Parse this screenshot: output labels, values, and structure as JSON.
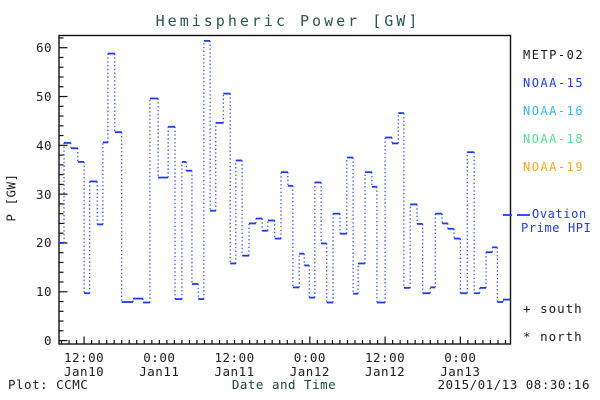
{
  "title": "Hemispheric Power [GW]",
  "axes": {
    "y_label": "P [GW]",
    "x_label": "Date and Time"
  },
  "footer": {
    "left": "Plot: CCMC",
    "right": "2015/01/13 08:30:16"
  },
  "legend": {
    "items": [
      {
        "label": "METP-02",
        "color": "#1a1a1a"
      },
      {
        "label": "NOAA-15",
        "color": "#1e3be6"
      },
      {
        "label": "NOAA-16",
        "color": "#37b6fb"
      },
      {
        "label": "NOAA-18",
        "color": "#57de8b"
      },
      {
        "label": "NOAA-19",
        "color": "#ffa51d"
      }
    ]
  },
  "annotations": {
    "ovation": {
      "line1": "Ovation",
      "line2": "Prime HPI",
      "color": "#1e3be6"
    },
    "markers": [
      {
        "symbol": "+",
        "label": "south"
      },
      {
        "symbol": "*",
        "label": "north"
      }
    ]
  },
  "chart_data": {
    "type": "line",
    "subtype": "step-segments-with-dotted-connectors",
    "title": "Hemispheric Power [GW]",
    "xlabel": "Date and Time",
    "ylabel": "P [GW]",
    "x_start": "2015-01-10 08:00",
    "x_span_hours": 72,
    "x_major_ticks": [
      {
        "t": 4,
        "time": "12:00",
        "date": "Jan10"
      },
      {
        "t": 16,
        "time": "0:00",
        "date": "Jan11"
      },
      {
        "t": 28,
        "time": "12:00",
        "date": "Jan11"
      },
      {
        "t": 40,
        "time": "0:00",
        "date": "Jan12"
      },
      {
        "t": 52,
        "time": "12:00",
        "date": "Jan12"
      },
      {
        "t": 64,
        "time": "0:00",
        "date": "Jan13"
      }
    ],
    "x_minor_step_hours": 1.2,
    "y_ticks": [
      0,
      10,
      20,
      30,
      40,
      50,
      60
    ],
    "y_minor_step": 2,
    "y_axis_min": -0.7,
    "y_axis_max": 62.5,
    "grid": false,
    "legend_position": "right-outside",
    "series": [
      {
        "name": "Ovation Prime HPI",
        "color": "#1e3be6",
        "t_hours": [
          0,
          0.8,
          1.9,
          3.0,
          4.0,
          4.9,
          6.1,
          7.0,
          7.8,
          8.9,
          10.0,
          11.8,
          13.4,
          14.5,
          15.8,
          17.4,
          18.5,
          19.6,
          20.3,
          21.2,
          22.2,
          23.1,
          24.1,
          25.0,
          26.2,
          27.3,
          28.2,
          29.2,
          30.3,
          31.4,
          32.4,
          33.3,
          34.4,
          35.4,
          36.5,
          37.3,
          38.3,
          39.1,
          39.9,
          40.8,
          41.8,
          42.7,
          43.7,
          44.8,
          45.9,
          46.9,
          47.7,
          48.8,
          49.9,
          50.7,
          52.0,
          53.1,
          54.1,
          55.0,
          56.0,
          57.1,
          58.0,
          59.2,
          60.0,
          61.1,
          62.0,
          63.0,
          64.0,
          65.1,
          66.2,
          67.1,
          68.1,
          69.1,
          69.9,
          70.8
        ],
        "gw": [
          20.0,
          40.5,
          39.4,
          36.6,
          9.7,
          32.6,
          23.8,
          40.6,
          58.8,
          42.7,
          7.9,
          8.6,
          7.8,
          49.6,
          33.4,
          43.8,
          8.5,
          36.6,
          34.8,
          11.6,
          8.5,
          61.4,
          26.6,
          44.6,
          50.6,
          15.8,
          36.9,
          17.4,
          24.0,
          25.0,
          22.5,
          24.6,
          20.9,
          34.5,
          31.7,
          10.9,
          17.8,
          15.4,
          8.8,
          32.4,
          19.9,
          7.8,
          26.0,
          21.9,
          37.5,
          9.6,
          15.8,
          34.5,
          31.5,
          7.8,
          41.6,
          40.4,
          46.6,
          10.8,
          27.9,
          23.9,
          9.7,
          10.9,
          26.0,
          24.0,
          22.9,
          20.9,
          9.7,
          38.6,
          9.7,
          10.8,
          18.1,
          19.1,
          7.9,
          8.4
        ],
        "t_end_hours": 72
      }
    ]
  }
}
